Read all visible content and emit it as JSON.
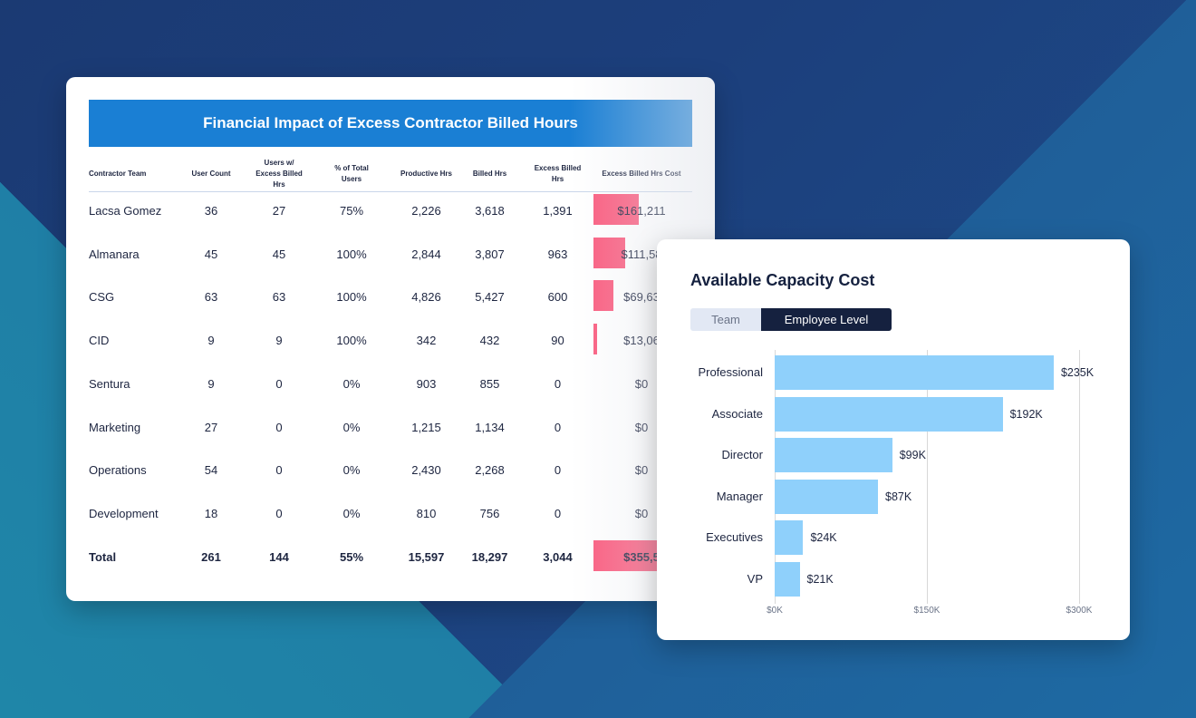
{
  "table": {
    "title": "Financial Impact of Excess Contractor Billed Hours",
    "columns": [
      "Contractor Team",
      "User Count",
      "Users w/ Excess Billed Hrs",
      "% of Total Users",
      "Productive Hrs",
      "Billed Hrs",
      "Excess Billed Hrs",
      "Excess Billed Hrs Cost"
    ],
    "rows": [
      {
        "team": "Lacsa Gomez",
        "users": "36",
        "excess_users": "27",
        "pct": "75%",
        "productive": "2,226",
        "billed": "3,618",
        "excess": "1,391",
        "cost": "$161,211",
        "cost_bar_level": 1.0
      },
      {
        "team": "Almanara",
        "users": "45",
        "excess_users": "45",
        "pct": "100%",
        "productive": "2,844",
        "billed": "3,807",
        "excess": "963",
        "cost": "$111,58",
        "cost_bar_level": 0.69
      },
      {
        "team": "CSG",
        "users": "63",
        "excess_users": "63",
        "pct": "100%",
        "productive": "4,826",
        "billed": "5,427",
        "excess": "600",
        "cost": "$69,63",
        "cost_bar_level": 0.43
      },
      {
        "team": "CID",
        "users": "9",
        "excess_users": "9",
        "pct": "100%",
        "productive": "342",
        "billed": "432",
        "excess": "90",
        "cost": "$13,06",
        "cost_bar_level": 0.08
      },
      {
        "team": "Sentura",
        "users": "9",
        "excess_users": "0",
        "pct": "0%",
        "productive": "903",
        "billed": "855",
        "excess": "0",
        "cost": "$0",
        "cost_bar_level": 0
      },
      {
        "team": "Marketing",
        "users": "27",
        "excess_users": "0",
        "pct": "0%",
        "productive": "1,215",
        "billed": "1,134",
        "excess": "0",
        "cost": "$0",
        "cost_bar_level": 0
      },
      {
        "team": "Operations",
        "users": "54",
        "excess_users": "0",
        "pct": "0%",
        "productive": "2,430",
        "billed": "2,268",
        "excess": "0",
        "cost": "$0",
        "cost_bar_level": 0
      },
      {
        "team": "Development",
        "users": "18",
        "excess_users": "0",
        "pct": "0%",
        "productive": "810",
        "billed": "756",
        "excess": "0",
        "cost": "$0",
        "cost_bar_level": 0
      }
    ],
    "total": {
      "team": "Total",
      "users": "261",
      "excess_users": "144",
      "pct": "55%",
      "productive": "15,597",
      "billed": "18,297",
      "excess": "3,044",
      "cost": "$355,5"
    },
    "colors": {
      "header": "#1a7fd4",
      "cost_bar": "#fb5b7e"
    }
  },
  "capacity": {
    "title": "Available Capacity Cost",
    "tabs": [
      {
        "label": "Team",
        "active": false
      },
      {
        "label": "Employee Level",
        "active": true
      }
    ],
    "chart_data": {
      "type": "bar",
      "orientation": "horizontal",
      "categories": [
        "Professional",
        "Associate",
        "Director",
        "Manager",
        "Executives",
        "VP"
      ],
      "values": [
        235,
        192,
        99,
        87,
        24,
        21
      ],
      "data_labels": [
        "$235K",
        "$192K",
        "$99K",
        "$87K",
        "$24K",
        "$21K"
      ],
      "xticks": [
        "$0K",
        "$150K",
        "$300K"
      ],
      "xlim": [
        0,
        300
      ],
      "unit": "$K",
      "grid": true,
      "color": "#8fd0fb"
    }
  }
}
